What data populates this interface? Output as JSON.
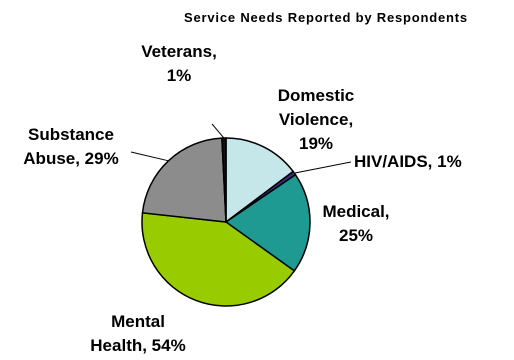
{
  "chart_data": {
    "type": "pie",
    "title": "Service Needs Reported by Respondents",
    "slices": [
      {
        "name": "Domestic Violence",
        "value": 19,
        "label": "19%",
        "color": "#c6e7ea"
      },
      {
        "name": "HIV/AIDS",
        "value": 1,
        "label": "1%",
        "color": "#3b2d7a"
      },
      {
        "name": "Medical",
        "value": 25,
        "label": "25%",
        "color": "#1f9a92"
      },
      {
        "name": "Mental Health",
        "value": 54,
        "label": "54%",
        "color": "#99cc00"
      },
      {
        "name": "Substance Abuse",
        "value": 29,
        "label": "29%",
        "color": "#8c8c8c"
      },
      {
        "name": "Veterans",
        "value": 1,
        "label": "1%",
        "color": "#111111"
      }
    ],
    "labels": [
      [
        "Domestic",
        "Violence,",
        "19%"
      ],
      [
        "HIV/AIDS, 1%"
      ],
      [
        "Medical,",
        "25%"
      ],
      [
        "Mental",
        "Health, 54%"
      ],
      [
        "Substance",
        "Abuse, 29%"
      ],
      [
        "Veterans,",
        "1%"
      ]
    ],
    "legend": "none",
    "grid": false
  }
}
